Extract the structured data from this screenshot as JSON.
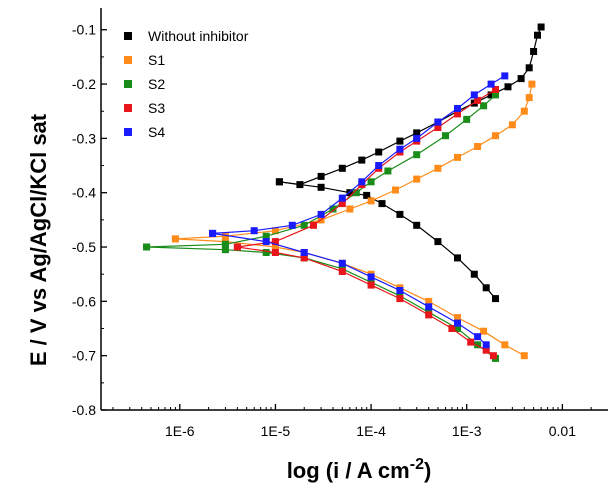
{
  "chart_data": {
    "type": "scatter",
    "xlabel": "log (i / A cm",
    "xlabel_exp": "-2",
    "xlabel_tail": ")",
    "ylabel": "E / V vs Ag/AgCl/KCl sat",
    "xscale": "log",
    "xlim": [
      1.5e-07,
      0.03
    ],
    "ylim": [
      -0.8,
      -0.06
    ],
    "xticks": [
      {
        "value": 1e-06,
        "label": "1E-6"
      },
      {
        "value": 1e-05,
        "label": "1E-5"
      },
      {
        "value": 0.0001,
        "label": "1E-4"
      },
      {
        "value": 0.001,
        "label": "1E-3"
      },
      {
        "value": 0.01,
        "label": "0.01"
      }
    ],
    "yticks": [
      -0.8,
      -0.7,
      -0.6,
      -0.5,
      -0.4,
      -0.3,
      -0.2,
      -0.1
    ],
    "grid": false,
    "legend_position": "top-left",
    "series": [
      {
        "name": "Without  inhibitor",
        "color": "#000000",
        "anodic": [
          [
            1.1e-05,
            -0.38
          ],
          [
            1.8e-05,
            -0.385
          ],
          [
            3e-05,
            -0.37
          ],
          [
            5e-05,
            -0.355
          ],
          [
            8e-05,
            -0.34
          ],
          [
            0.00012,
            -0.325
          ],
          [
            0.0002,
            -0.305
          ],
          [
            0.0003,
            -0.29
          ],
          [
            0.0005,
            -0.27
          ],
          [
            0.0008,
            -0.25
          ],
          [
            0.0012,
            -0.235
          ],
          [
            0.0018,
            -0.22
          ],
          [
            0.0027,
            -0.205
          ],
          [
            0.0037,
            -0.19
          ],
          [
            0.0045,
            -0.17
          ],
          [
            0.005,
            -0.14
          ],
          [
            0.0055,
            -0.11
          ],
          [
            0.006,
            -0.095
          ]
        ],
        "cathodic": [
          [
            1.1e-05,
            -0.38
          ],
          [
            3e-05,
            -0.39
          ],
          [
            6e-05,
            -0.4
          ],
          [
            9e-05,
            -0.405
          ],
          [
            0.00013,
            -0.42
          ],
          [
            0.0002,
            -0.44
          ],
          [
            0.0003,
            -0.46
          ],
          [
            0.0005,
            -0.49
          ],
          [
            0.0008,
            -0.52
          ],
          [
            0.0012,
            -0.55
          ],
          [
            0.0016,
            -0.575
          ],
          [
            0.002,
            -0.595
          ]
        ]
      },
      {
        "name": "S1",
        "color": "#ff8c1a",
        "anodic": [
          [
            9e-07,
            -0.485
          ],
          [
            3e-06,
            -0.48
          ],
          [
            1e-05,
            -0.47
          ],
          [
            3e-05,
            -0.45
          ],
          [
            6e-05,
            -0.43
          ],
          [
            0.0001,
            -0.415
          ],
          [
            0.00018,
            -0.395
          ],
          [
            0.0003,
            -0.375
          ],
          [
            0.0005,
            -0.355
          ],
          [
            0.0008,
            -0.335
          ],
          [
            0.0013,
            -0.315
          ],
          [
            0.002,
            -0.295
          ],
          [
            0.003,
            -0.275
          ],
          [
            0.004,
            -0.25
          ],
          [
            0.0045,
            -0.225
          ],
          [
            0.0048,
            -0.2
          ]
        ],
        "cathodic": [
          [
            9e-07,
            -0.485
          ],
          [
            3e-06,
            -0.49
          ],
          [
            1e-05,
            -0.5
          ],
          [
            2e-05,
            -0.51
          ],
          [
            5e-05,
            -0.53
          ],
          [
            0.0001,
            -0.55
          ],
          [
            0.0002,
            -0.575
          ],
          [
            0.0004,
            -0.6
          ],
          [
            0.0008,
            -0.63
          ],
          [
            0.0015,
            -0.655
          ],
          [
            0.0025,
            -0.68
          ],
          [
            0.004,
            -0.7
          ]
        ]
      },
      {
        "name": "S2",
        "color": "#1a8c1a",
        "anodic": [
          [
            4.5e-07,
            -0.5
          ],
          [
            3e-06,
            -0.495
          ],
          [
            8e-06,
            -0.48
          ],
          [
            2e-05,
            -0.46
          ],
          [
            4e-05,
            -0.43
          ],
          [
            7e-05,
            -0.4
          ],
          [
            0.0001,
            -0.38
          ],
          [
            0.00015,
            -0.36
          ],
          [
            0.0003,
            -0.33
          ],
          [
            0.0006,
            -0.295
          ],
          [
            0.001,
            -0.265
          ],
          [
            0.0015,
            -0.24
          ],
          [
            0.002,
            -0.22
          ]
        ],
        "cathodic": [
          [
            4.5e-07,
            -0.5
          ],
          [
            3e-06,
            -0.505
          ],
          [
            8e-06,
            -0.51
          ],
          [
            2e-05,
            -0.52
          ],
          [
            5e-05,
            -0.54
          ],
          [
            0.0001,
            -0.565
          ],
          [
            0.0002,
            -0.59
          ],
          [
            0.0004,
            -0.62
          ],
          [
            0.0008,
            -0.65
          ],
          [
            0.0013,
            -0.68
          ],
          [
            0.002,
            -0.705
          ]
        ]
      },
      {
        "name": "S3",
        "color": "#e8151b",
        "anodic": [
          [
            4e-06,
            -0.5
          ],
          [
            1e-05,
            -0.49
          ],
          [
            2.5e-05,
            -0.46
          ],
          [
            5e-05,
            -0.42
          ],
          [
            8e-05,
            -0.385
          ],
          [
            0.00012,
            -0.355
          ],
          [
            0.0002,
            -0.325
          ],
          [
            0.0003,
            -0.305
          ],
          [
            0.0005,
            -0.28
          ],
          [
            0.0008,
            -0.255
          ],
          [
            0.0013,
            -0.23
          ],
          [
            0.002,
            -0.21
          ]
        ],
        "cathodic": [
          [
            4e-06,
            -0.5
          ],
          [
            1e-05,
            -0.51
          ],
          [
            2e-05,
            -0.52
          ],
          [
            5e-05,
            -0.545
          ],
          [
            0.0001,
            -0.57
          ],
          [
            0.0002,
            -0.595
          ],
          [
            0.0004,
            -0.625
          ],
          [
            0.0007,
            -0.65
          ],
          [
            0.0011,
            -0.675
          ],
          [
            0.0016,
            -0.69
          ],
          [
            0.0019,
            -0.7
          ]
        ]
      },
      {
        "name": "S4",
        "color": "#1a1aff",
        "anodic": [
          [
            2.2e-06,
            -0.475
          ],
          [
            6e-06,
            -0.47
          ],
          [
            1.5e-05,
            -0.46
          ],
          [
            3e-05,
            -0.44
          ],
          [
            5e-05,
            -0.41
          ],
          [
            8e-05,
            -0.38
          ],
          [
            0.00012,
            -0.35
          ],
          [
            0.0002,
            -0.32
          ],
          [
            0.0003,
            -0.3
          ],
          [
            0.0005,
            -0.27
          ],
          [
            0.0008,
            -0.245
          ],
          [
            0.0012,
            -0.22
          ],
          [
            0.0018,
            -0.2
          ],
          [
            0.0025,
            -0.185
          ]
        ],
        "cathodic": [
          [
            2.2e-06,
            -0.475
          ],
          [
            8e-06,
            -0.49
          ],
          [
            2e-05,
            -0.51
          ],
          [
            5e-05,
            -0.53
          ],
          [
            0.0001,
            -0.555
          ],
          [
            0.0002,
            -0.58
          ],
          [
            0.0004,
            -0.61
          ],
          [
            0.0008,
            -0.64
          ],
          [
            0.0013,
            -0.665
          ],
          [
            0.0016,
            -0.68
          ]
        ]
      }
    ]
  }
}
